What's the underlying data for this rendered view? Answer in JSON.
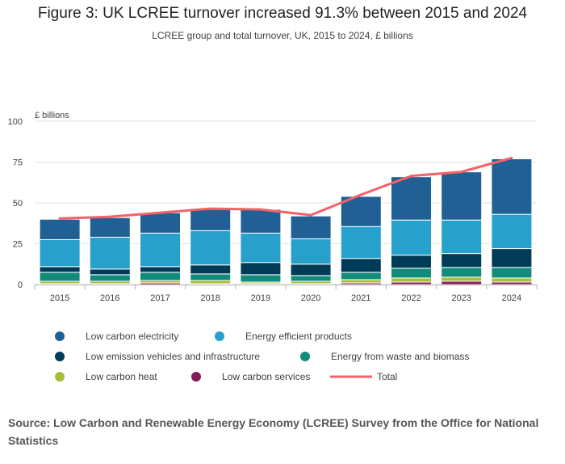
{
  "title": "Figure 3: UK LCREE turnover increased 91.3% between 2015 and 2024",
  "subtitle": "LCREE group and total turnover, UK, 2015 to 2024, £ billions",
  "source": "Source: Low Carbon and Renewable Energy Economy (LCREE) Survey from the Office for National Statistics",
  "chart_data": {
    "type": "bar",
    "stacked": true,
    "categories": [
      "2015",
      "2016",
      "2017",
      "2018",
      "2019",
      "2020",
      "2021",
      "2022",
      "2023",
      "2024"
    ],
    "ylabel": "£ billions",
    "ylim": [
      0,
      100
    ],
    "yticks": [
      0,
      25,
      50,
      75,
      100
    ],
    "grid": true,
    "legend_position": "bottom",
    "series": [
      {
        "name": "Low carbon services",
        "color": "#871a5b",
        "values": [
          0.5,
          0.5,
          1.0,
          0.5,
          0.5,
          0.5,
          1.0,
          1.5,
          2.0,
          1.5
        ]
      },
      {
        "name": "Low carbon heat",
        "color": "#a8bd3a",
        "values": [
          1.5,
          1.5,
          1.5,
          2.0,
          1.0,
          1.5,
          2.0,
          2.5,
          2.5,
          2.5
        ]
      },
      {
        "name": "Energy from waste and biomass",
        "color": "#118c7b",
        "values": [
          5.5,
          4.0,
          5.0,
          4.0,
          4.5,
          3.5,
          4.5,
          6.0,
          6.0,
          6.5
        ]
      },
      {
        "name": "Low emission vehicles and infrastructure",
        "color": "#003c57",
        "values": [
          3.5,
          3.5,
          3.5,
          5.5,
          7.5,
          7.0,
          8.5,
          8.0,
          8.5,
          11.5
        ]
      },
      {
        "name": "Energy efficient products",
        "color": "#27a0cc",
        "values": [
          16.5,
          19.5,
          20.5,
          21.0,
          18.0,
          15.5,
          19.5,
          21.5,
          20.5,
          21.0
        ]
      },
      {
        "name": "Low carbon electricity",
        "color": "#206095",
        "values": [
          12.5,
          12.0,
          12.5,
          13.0,
          14.5,
          14.0,
          18.5,
          26.5,
          29.5,
          34.0
        ]
      }
    ],
    "line": {
      "name": "Total",
      "color": "#f66068",
      "values": [
        40.5,
        41.5,
        44.0,
        46.5,
        46.0,
        42.5,
        55.0,
        66.5,
        69.0,
        77.5
      ]
    }
  },
  "legend_rows": [
    [
      "Low carbon electricity",
      "Energy efficient products"
    ],
    [
      "Low emission vehicles and infrastructure",
      "Energy from waste and biomass"
    ],
    [
      "Low carbon heat",
      "Low carbon services",
      "Total"
    ]
  ]
}
